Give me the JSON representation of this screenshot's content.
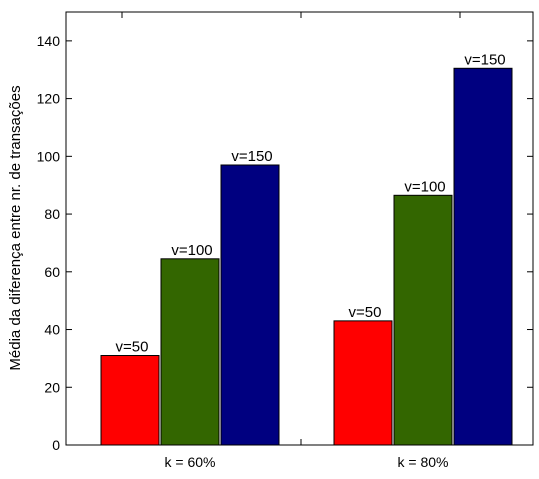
{
  "chart_data": {
    "type": "bar",
    "title": "",
    "xlabel": "",
    "ylabel": "Média da diferença entre nr. de transações",
    "categories": [
      "k = 60%",
      "k = 80%"
    ],
    "series": [
      {
        "label": "v=50",
        "values": [
          31,
          43
        ],
        "color": "#ff0000"
      },
      {
        "label": "v=100",
        "values": [
          64.5,
          86.5
        ],
        "color": "#336600"
      },
      {
        "label": "v=150",
        "values": [
          97,
          130.5
        ],
        "color": "#000080"
      }
    ],
    "ylim": [
      0,
      150
    ],
    "yticks": [
      0,
      20,
      40,
      60,
      80,
      100,
      120,
      140
    ],
    "grid": false,
    "legend": "none"
  }
}
